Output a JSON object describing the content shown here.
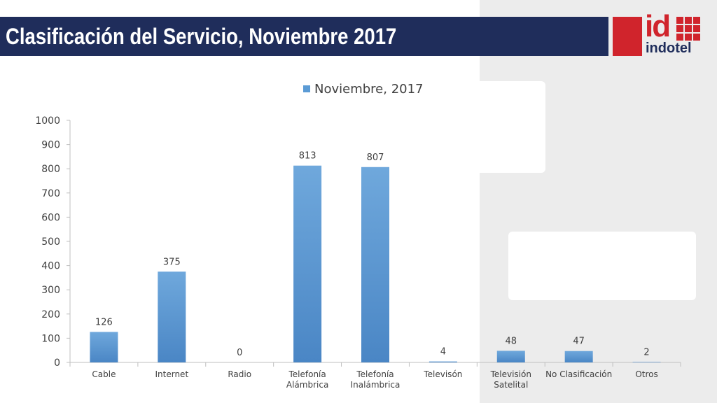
{
  "header": {
    "title": "Clasificación del Servicio, Noviembre 2017"
  },
  "logo": {
    "mark": "id",
    "name": "indotel"
  },
  "chart_data": {
    "type": "bar",
    "categories": [
      "Cable",
      "Internet",
      "Radio",
      "Telefonía Alámbrica",
      "Telefonía Inalámbrica",
      "Televisón",
      "Televisión Satelital",
      "No Clasificación",
      "Otros"
    ],
    "category_lines": [
      [
        "Cable"
      ],
      [
        "Internet"
      ],
      [
        "Radio"
      ],
      [
        "Telefonía",
        "Alámbrica"
      ],
      [
        "Telefonía",
        "Inalámbrica"
      ],
      [
        "Televisón"
      ],
      [
        "Televisión",
        "Satelital"
      ],
      [
        "No Clasificación"
      ],
      [
        "Otros"
      ]
    ],
    "series": [
      {
        "name": "Noviembre, 2017",
        "values": [
          126,
          375,
          0,
          813,
          807,
          4,
          48,
          47,
          2
        ]
      }
    ],
    "ylim": [
      0,
      1000
    ],
    "yticks": [
      0,
      100,
      200,
      300,
      400,
      500,
      600,
      700,
      800,
      900,
      1000
    ],
    "grid": false,
    "legend_position": "top",
    "bar_color": "#5b9bd5",
    "xlabel": "",
    "ylabel": ""
  }
}
